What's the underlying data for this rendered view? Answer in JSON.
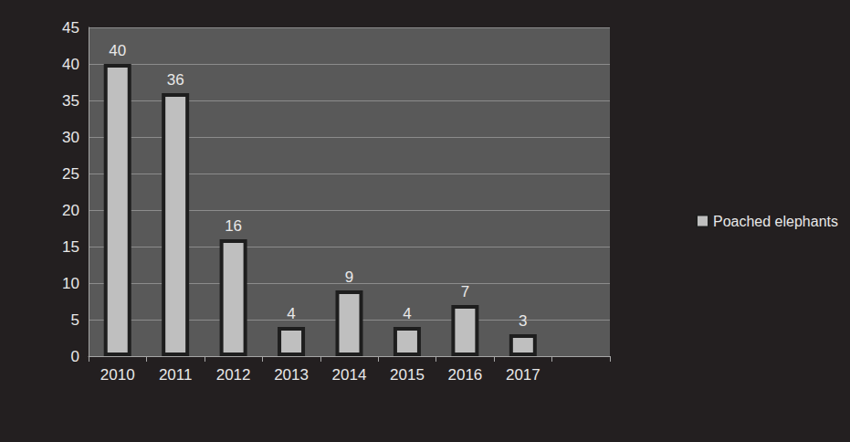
{
  "chart_data": {
    "type": "bar",
    "categories": [
      "2010",
      "2011",
      "2012",
      "2013",
      "2014",
      "2015",
      "2016",
      "2017",
      null
    ],
    "series": [
      {
        "name": "Poached elephants",
        "color": "#bfbfbf",
        "values": [
          40,
          36,
          16,
          4,
          9,
          4,
          7,
          3,
          null
        ]
      }
    ],
    "ylim": [
      0,
      45
    ],
    "yticks": [
      0,
      5,
      10,
      15,
      20,
      25,
      30,
      35,
      40,
      45
    ],
    "grid": true,
    "data_labels": true,
    "legend": "right"
  }
}
